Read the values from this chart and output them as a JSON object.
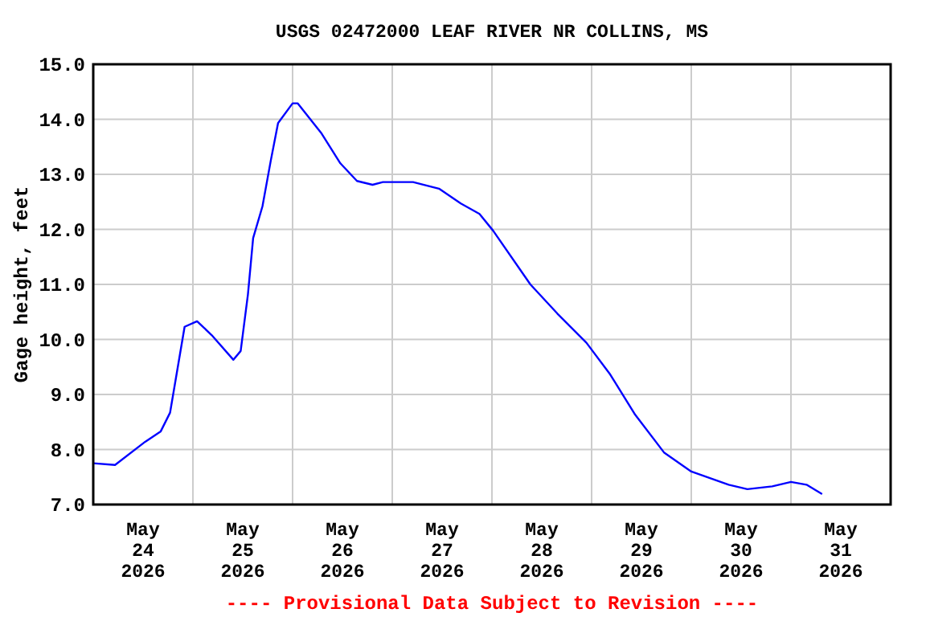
{
  "chart_data": {
    "type": "line",
    "title": "USGS 02472000 LEAF RIVER NR COLLINS, MS",
    "ylabel": "Gage height, feet",
    "annotations": [
      "---- Provisional Data Subject to Revision ----"
    ],
    "x": [
      "2026-05-24T00:00",
      "2026-05-24T05:15",
      "2026-05-24T12:30",
      "2026-05-24T16:15",
      "2026-05-24T18:30",
      "2026-05-24T22:00",
      "2026-05-25T01:00",
      "2026-05-25T04:30",
      "2026-05-25T09:45",
      "2026-05-25T11:30",
      "2026-05-25T13:15",
      "2026-05-25T14:30",
      "2026-05-25T16:45",
      "2026-05-25T18:45",
      "2026-05-25T20:30",
      "2026-05-26T00:00",
      "2026-05-26T01:15",
      "2026-05-26T07:00",
      "2026-05-26T11:30",
      "2026-05-26T15:30",
      "2026-05-26T19:15",
      "2026-05-26T21:45",
      "2026-05-27T05:00",
      "2026-05-27T11:15",
      "2026-05-27T16:30",
      "2026-05-27T21:00",
      "2026-05-28T00:15",
      "2026-05-28T09:15",
      "2026-05-28T15:45",
      "2026-05-28T22:45",
      "2026-05-29T04:30",
      "2026-05-29T10:30",
      "2026-05-29T17:30",
      "2026-05-30T00:00",
      "2026-05-30T09:00",
      "2026-05-30T13:30",
      "2026-05-30T19:30",
      "2026-05-31T00:00",
      "2026-05-31T03:45",
      "2026-05-31T07:30"
    ],
    "series": [
      {
        "color": "#0000ff",
        "values": [
          7.75,
          7.72,
          8.14,
          8.33,
          8.67,
          10.23,
          10.33,
          10.08,
          9.63,
          9.79,
          10.82,
          11.84,
          12.42,
          13.25,
          13.93,
          14.29,
          14.29,
          13.74,
          13.2,
          12.88,
          12.81,
          12.86,
          12.86,
          12.74,
          12.47,
          12.28,
          11.98,
          11.0,
          10.47,
          9.94,
          9.36,
          8.63,
          7.94,
          7.6,
          7.36,
          7.28,
          7.33,
          7.41,
          7.36,
          7.19
        ]
      }
    ],
    "xlim": [
      "2026-05-24T00:00",
      "2026-06-01T00:00"
    ],
    "xticks": [
      {
        "value": "2026-05-24T12:00",
        "label": "May\n24\n2026"
      },
      {
        "value": "2026-05-25T00:00",
        "label": null
      },
      {
        "value": "2026-05-25T12:00",
        "label": "May\n25\n2026"
      },
      {
        "value": "2026-05-26T00:00",
        "label": null
      },
      {
        "value": "2026-05-26T12:00",
        "label": "May\n26\n2026"
      },
      {
        "value": "2026-05-27T00:00",
        "label": null
      },
      {
        "value": "2026-05-27T12:00",
        "label": "May\n27\n2026"
      },
      {
        "value": "2026-05-28T00:00",
        "label": null
      },
      {
        "value": "2026-05-28T12:00",
        "label": "May\n28\n2026"
      },
      {
        "value": "2026-05-29T00:00",
        "label": null
      },
      {
        "value": "2026-05-29T12:00",
        "label": "May\n29\n2026"
      },
      {
        "value": "2026-05-30T00:00",
        "label": null
      },
      {
        "value": "2026-05-30T12:00",
        "label": "May\n30\n2026"
      },
      {
        "value": "2026-05-31T00:00",
        "label": null
      },
      {
        "value": "2026-05-31T12:00",
        "label": "May\n31\n2026"
      }
    ],
    "ylim": [
      7,
      15
    ],
    "yticks": [
      {
        "value": 7,
        "label": "7.0"
      },
      {
        "value": 8,
        "label": "8.0"
      },
      {
        "value": 9,
        "label": "9.0"
      },
      {
        "value": 10,
        "label": "10.0"
      },
      {
        "value": 11,
        "label": "11.0"
      },
      {
        "value": 12,
        "label": "12.0"
      },
      {
        "value": 13,
        "label": "13.0"
      },
      {
        "value": 14,
        "label": "14.0"
      },
      {
        "value": 15,
        "label": "15.0"
      }
    ],
    "grid": true,
    "marker": "none",
    "line_style": "solid"
  }
}
